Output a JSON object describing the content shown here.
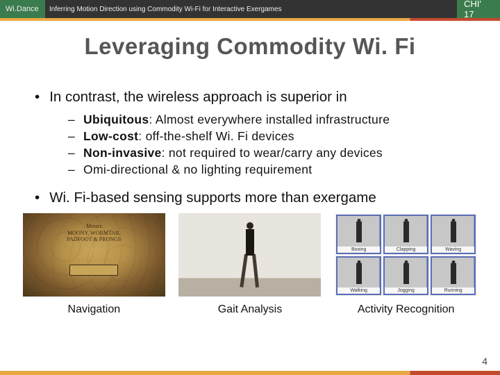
{
  "header": {
    "brand": "Wi.Dance",
    "subtitle": "Inferring Motion Direction using Commodity Wi-Fi for Interactive Exergames",
    "venue": "CHI' 17"
  },
  "title": "Leveraging  Commodity  Wi. Fi",
  "bullets": {
    "main1": "In contrast, the wireless approach is superior in",
    "subs": [
      {
        "bold": "Ubiquitous",
        "rest": ": Almost everywhere installed infrastructure"
      },
      {
        "bold": "Low-cost",
        "rest": ": off-the-shelf Wi. Fi devices"
      },
      {
        "bold": "Non-invasive",
        "rest": ": not required to wear/carry any devices"
      },
      {
        "bold": "",
        "rest": "Omi-directional & no lighting requirement"
      }
    ],
    "main2": "Wi. Fi-based sensing supports more than exergame"
  },
  "images": {
    "map": {
      "line1": "Messrs",
      "line2": "MOONY, WORMTAIL",
      "line3": "PADFOOT & PRONGS",
      "banner": "Marauder's Map"
    },
    "activities": [
      "Boxing",
      "Clapping",
      "Waving",
      "Walking",
      "Jogging",
      "Running"
    ]
  },
  "captions": {
    "c1": "Navigation",
    "c2": "Gait Analysis",
    "c3": "Activity Recognition"
  },
  "colors": {
    "accent_amber": "#e9a843",
    "accent_red": "#c44a2d",
    "header_green": "#3b7c4e",
    "header_dark": "#333333"
  },
  "page_number": "4"
}
